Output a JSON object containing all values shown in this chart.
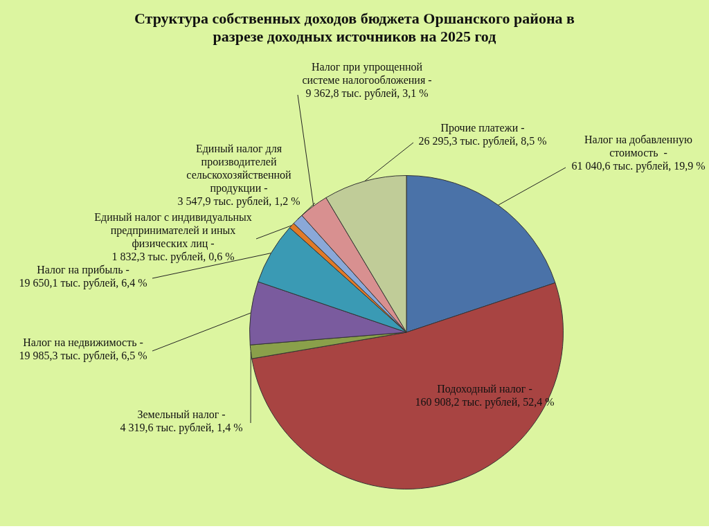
{
  "chart_data": {
    "type": "pie",
    "title": "Структура собственных доходов бюджета Оршанского района в разрезе доходных источников на 2025 год",
    "categories": [
      "Налог на добавленную стоимость  -",
      "Подоходный налог -",
      "Земельный налог -",
      "Налог на недвижимость -",
      "Налог на прибыль -",
      "Единый налог с индивидуальных предпринимателей и иных физических лиц -",
      "Единый налог для производителей сельскохозяйственной продукции -",
      "Налог при упрощенной системе налогообложения -",
      "Прочие платежи -"
    ],
    "values": [
      61040.6,
      160908.2,
      4319.6,
      19985.3,
      19650.1,
      1832.3,
      3547.9,
      9362.8,
      26295.3
    ],
    "colors": [
      "#4a72a8",
      "#a84442",
      "#8aa04a",
      "#7a5b9e",
      "#3a9ab4",
      "#e07a28",
      "#8aa8d8",
      "#d89090",
      "#c0cc98"
    ],
    "value_labels": [
      "61 040,6 тыс. рублей, 19,9 %",
      "160 908,2 тыс. рублей, 52,4 %",
      "4 319,6 тыс. рублей, 1,4 %",
      "19 985,3 тыс. рублей, 6,5 %",
      "19 650,1 тыс. рублей, 6,4 %",
      "1 832,3 тыс. рублей, 0,6 %",
      "3 547,9 тыс. рублей, 1,2 %",
      "9 362,8 тыс. рублей, 3,1 %",
      "26 295,3 тыс. рублей, 8,5 %"
    ]
  }
}
